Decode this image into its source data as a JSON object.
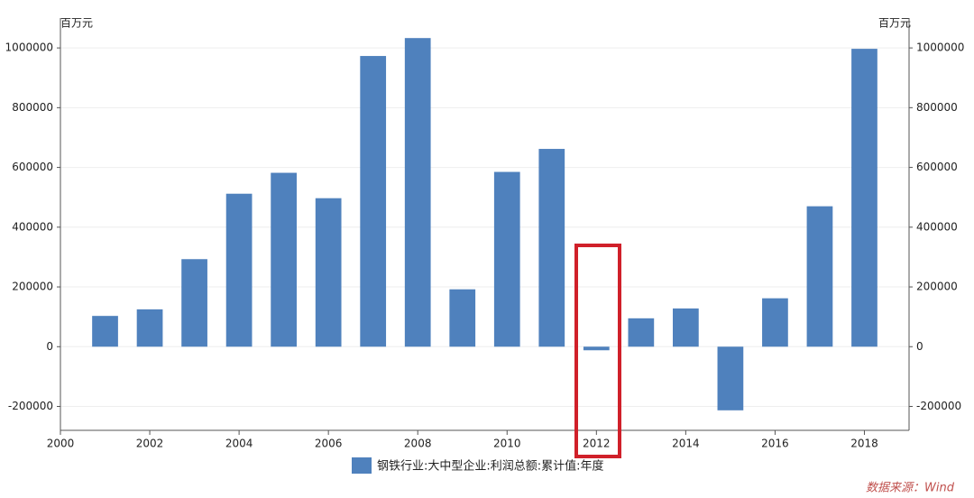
{
  "chart_data": {
    "type": "bar",
    "y_unit": "百万元",
    "y2_unit": "百万元",
    "x": [
      2001,
      2002,
      2003,
      2004,
      2005,
      2006,
      2007,
      2008,
      2009,
      2010,
      2011,
      2012,
      2013,
      2014,
      2015,
      2016,
      2017,
      2018
    ],
    "series": [
      {
        "name": "钢铁行业:大中型企业:利润总额:累计值:年度",
        "color": "#4f81bd",
        "values": [
          103000,
          125000,
          293000,
          512000,
          582000,
          497000,
          973000,
          1033000,
          192000,
          585000,
          662000,
          -12000,
          95000,
          128000,
          -213000,
          162000,
          470000,
          997000
        ]
      }
    ],
    "xlim": [
      2000,
      2019
    ],
    "xticks": [
      2000,
      2002,
      2004,
      2006,
      2008,
      2010,
      2012,
      2014,
      2016,
      2018
    ],
    "ylim": [
      -280000,
      1100000
    ],
    "yticks": [
      -200000,
      0,
      200000,
      400000,
      600000,
      800000,
      1000000
    ],
    "y2lim": [
      -280000,
      1100000
    ],
    "y2ticks": [
      -200000,
      0,
      200000,
      400000,
      600000,
      800000,
      1000000
    ],
    "grid": true,
    "legend": "bottom",
    "source": "数据来源：Wind"
  }
}
